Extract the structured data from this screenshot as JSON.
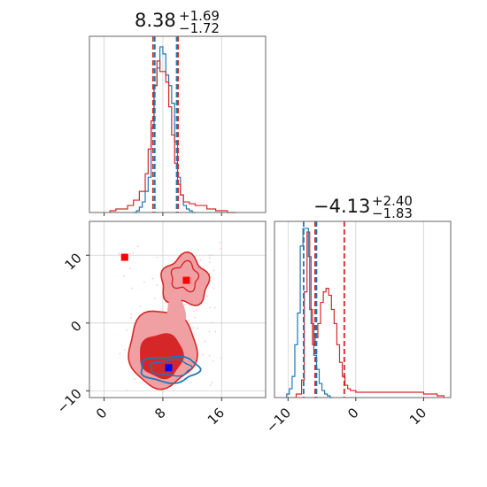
{
  "colors": {
    "blue": "#1f77b4",
    "red": "#d62728",
    "red_fill_dark": "#d62728",
    "red_fill_light": "#f0a0a3",
    "grid": "#d0d0d0",
    "marker_red": "#ff0000",
    "marker_blue": "#0000ff"
  },
  "chart_data": [
    {
      "type": "histogram",
      "panel": "param1-marginal",
      "title_value": "8.38",
      "title_plus": "+1.69",
      "title_minus": "−1.72",
      "xlim": [
        -2,
        22
      ],
      "series": [
        {
          "name": "",
          "color": "#1f77b4",
          "bin_edges": [
            4.0,
            4.4,
            4.8,
            5.2,
            5.6,
            6.0,
            6.4,
            6.8,
            7.2,
            7.6,
            8.0,
            8.4,
            8.8,
            9.2,
            9.6,
            10.0,
            10.4,
            10.8,
            11.2,
            11.6,
            12.0,
            12.4
          ],
          "values": [
            0.0,
            0.01,
            0.03,
            0.06,
            0.12,
            0.2,
            0.48,
            0.72,
            0.82,
            0.94,
            0.9,
            0.78,
            0.72,
            0.62,
            0.4,
            0.2,
            0.1,
            0.04,
            0.02,
            0.01,
            0.0
          ]
        },
        {
          "name": "",
          "color": "#d62728",
          "bin_edges": [
            0.8,
            1.6,
            2.4,
            3.2,
            4.0,
            4.8,
            5.6,
            6.0,
            6.4,
            6.8,
            7.2,
            7.6,
            8.0,
            8.4,
            8.8,
            9.2,
            9.6,
            10.0,
            10.4,
            10.8,
            11.6,
            12.4,
            13.2,
            14.0,
            15.2,
            16.8,
            18.0
          ],
          "values": [
            0.01,
            0.02,
            0.02,
            0.04,
            0.07,
            0.12,
            0.22,
            0.36,
            0.52,
            0.72,
            0.86,
            0.8,
            0.8,
            0.74,
            0.6,
            0.44,
            0.28,
            0.16,
            0.1,
            0.06,
            0.05,
            0.04,
            0.04,
            0.02,
            0.01,
            0.0
          ]
        }
      ],
      "quantile_lines": [
        {
          "color": "#d62728",
          "x": 6.66
        },
        {
          "color": "#1f77b4",
          "x": 6.9
        },
        {
          "color": "#1f77b4",
          "x": 9.88
        },
        {
          "color": "#d62728",
          "x": 10.07
        }
      ],
      "grid": true
    },
    {
      "type": "contour-scatter",
      "panel": "param1-vs-param2",
      "xlim": [
        -2,
        22
      ],
      "ylim": [
        -11,
        15
      ],
      "xticks": [
        "0",
        "8",
        "16"
      ],
      "xtick_values": [
        0,
        8,
        16
      ],
      "yticks": [
        "−10",
        "0",
        "10"
      ],
      "ytick_values": [
        -10,
        0,
        10
      ],
      "grid": true,
      "red_markers": [
        [
          2.8,
          9.7
        ],
        [
          11.2,
          6.3
        ]
      ],
      "blue_markers": [
        [
          8.8,
          -6.6
        ]
      ],
      "red_levels": [
        {
          "fill": "#f0a0a3",
          "center": [
            7.9,
            -3.8
          ],
          "rx": 4.6,
          "ry": 5.7
        },
        {
          "fill": "#d62728",
          "center": [
            7.8,
            -4.8
          ],
          "rx": 2.9,
          "ry": 3.2
        },
        {
          "fill": "#f0a0a3",
          "center": [
            11.0,
            6.2
          ],
          "rx": 3.2,
          "ry": 3.6
        }
      ],
      "blue_contour": {
        "center": [
          8.9,
          -6.8
        ],
        "rx": 4.0,
        "ry": 1.9
      }
    },
    {
      "type": "histogram",
      "panel": "param2-marginal",
      "title_value": "−4.13",
      "title_plus": "+2.40",
      "title_minus": "−1.83",
      "xlim": [
        -12,
        14
      ],
      "xticks": [
        "−10",
        "0",
        "10"
      ],
      "xtick_values": [
        -10,
        0,
        10
      ],
      "series": [
        {
          "name": "",
          "color": "#1f77b4",
          "bin_edges": [
            -10.2,
            -9.8,
            -9.4,
            -9.0,
            -8.6,
            -8.2,
            -7.8,
            -7.4,
            -7.0,
            -6.6,
            -6.2,
            -5.8,
            -5.4,
            -5.0,
            -4.6,
            -4.2,
            -3.8,
            -3.4
          ],
          "values": [
            0.02,
            0.05,
            0.12,
            0.3,
            0.48,
            0.86,
            0.96,
            0.96,
            0.8,
            0.42,
            0.24,
            0.16,
            0.08,
            0.04,
            0.02,
            0.01,
            0.0
          ]
        },
        {
          "name": "",
          "color": "#d62728",
          "bin_edges": [
            -8.8,
            -8.0,
            -7.6,
            -7.2,
            -6.8,
            -6.4,
            -6.0,
            -5.6,
            -5.2,
            -4.8,
            -4.4,
            -4.0,
            -3.6,
            -3.2,
            -2.8,
            -2.4,
            -2.0,
            -1.6,
            -1.2,
            -0.8,
            0.0,
            2.0,
            4.0,
            6.0,
            8.0,
            10.0,
            12.0,
            13.0
          ],
          "values": [
            0.02,
            0.1,
            0.6,
            0.94,
            0.5,
            0.3,
            0.34,
            0.42,
            0.54,
            0.6,
            0.62,
            0.58,
            0.5,
            0.42,
            0.3,
            0.2,
            0.12,
            0.07,
            0.05,
            0.04,
            0.03,
            0.03,
            0.03,
            0.03,
            0.03,
            0.02,
            0.01
          ]
        }
      ],
      "quantile_lines": [
        {
          "color": "#1f77b4",
          "x": -7.7
        },
        {
          "color": "#d62728",
          "x": -6.0
        },
        {
          "color": "#1f77b4",
          "x": -5.8
        },
        {
          "color": "#d62728",
          "x": -1.7
        }
      ],
      "grid": true
    }
  ]
}
